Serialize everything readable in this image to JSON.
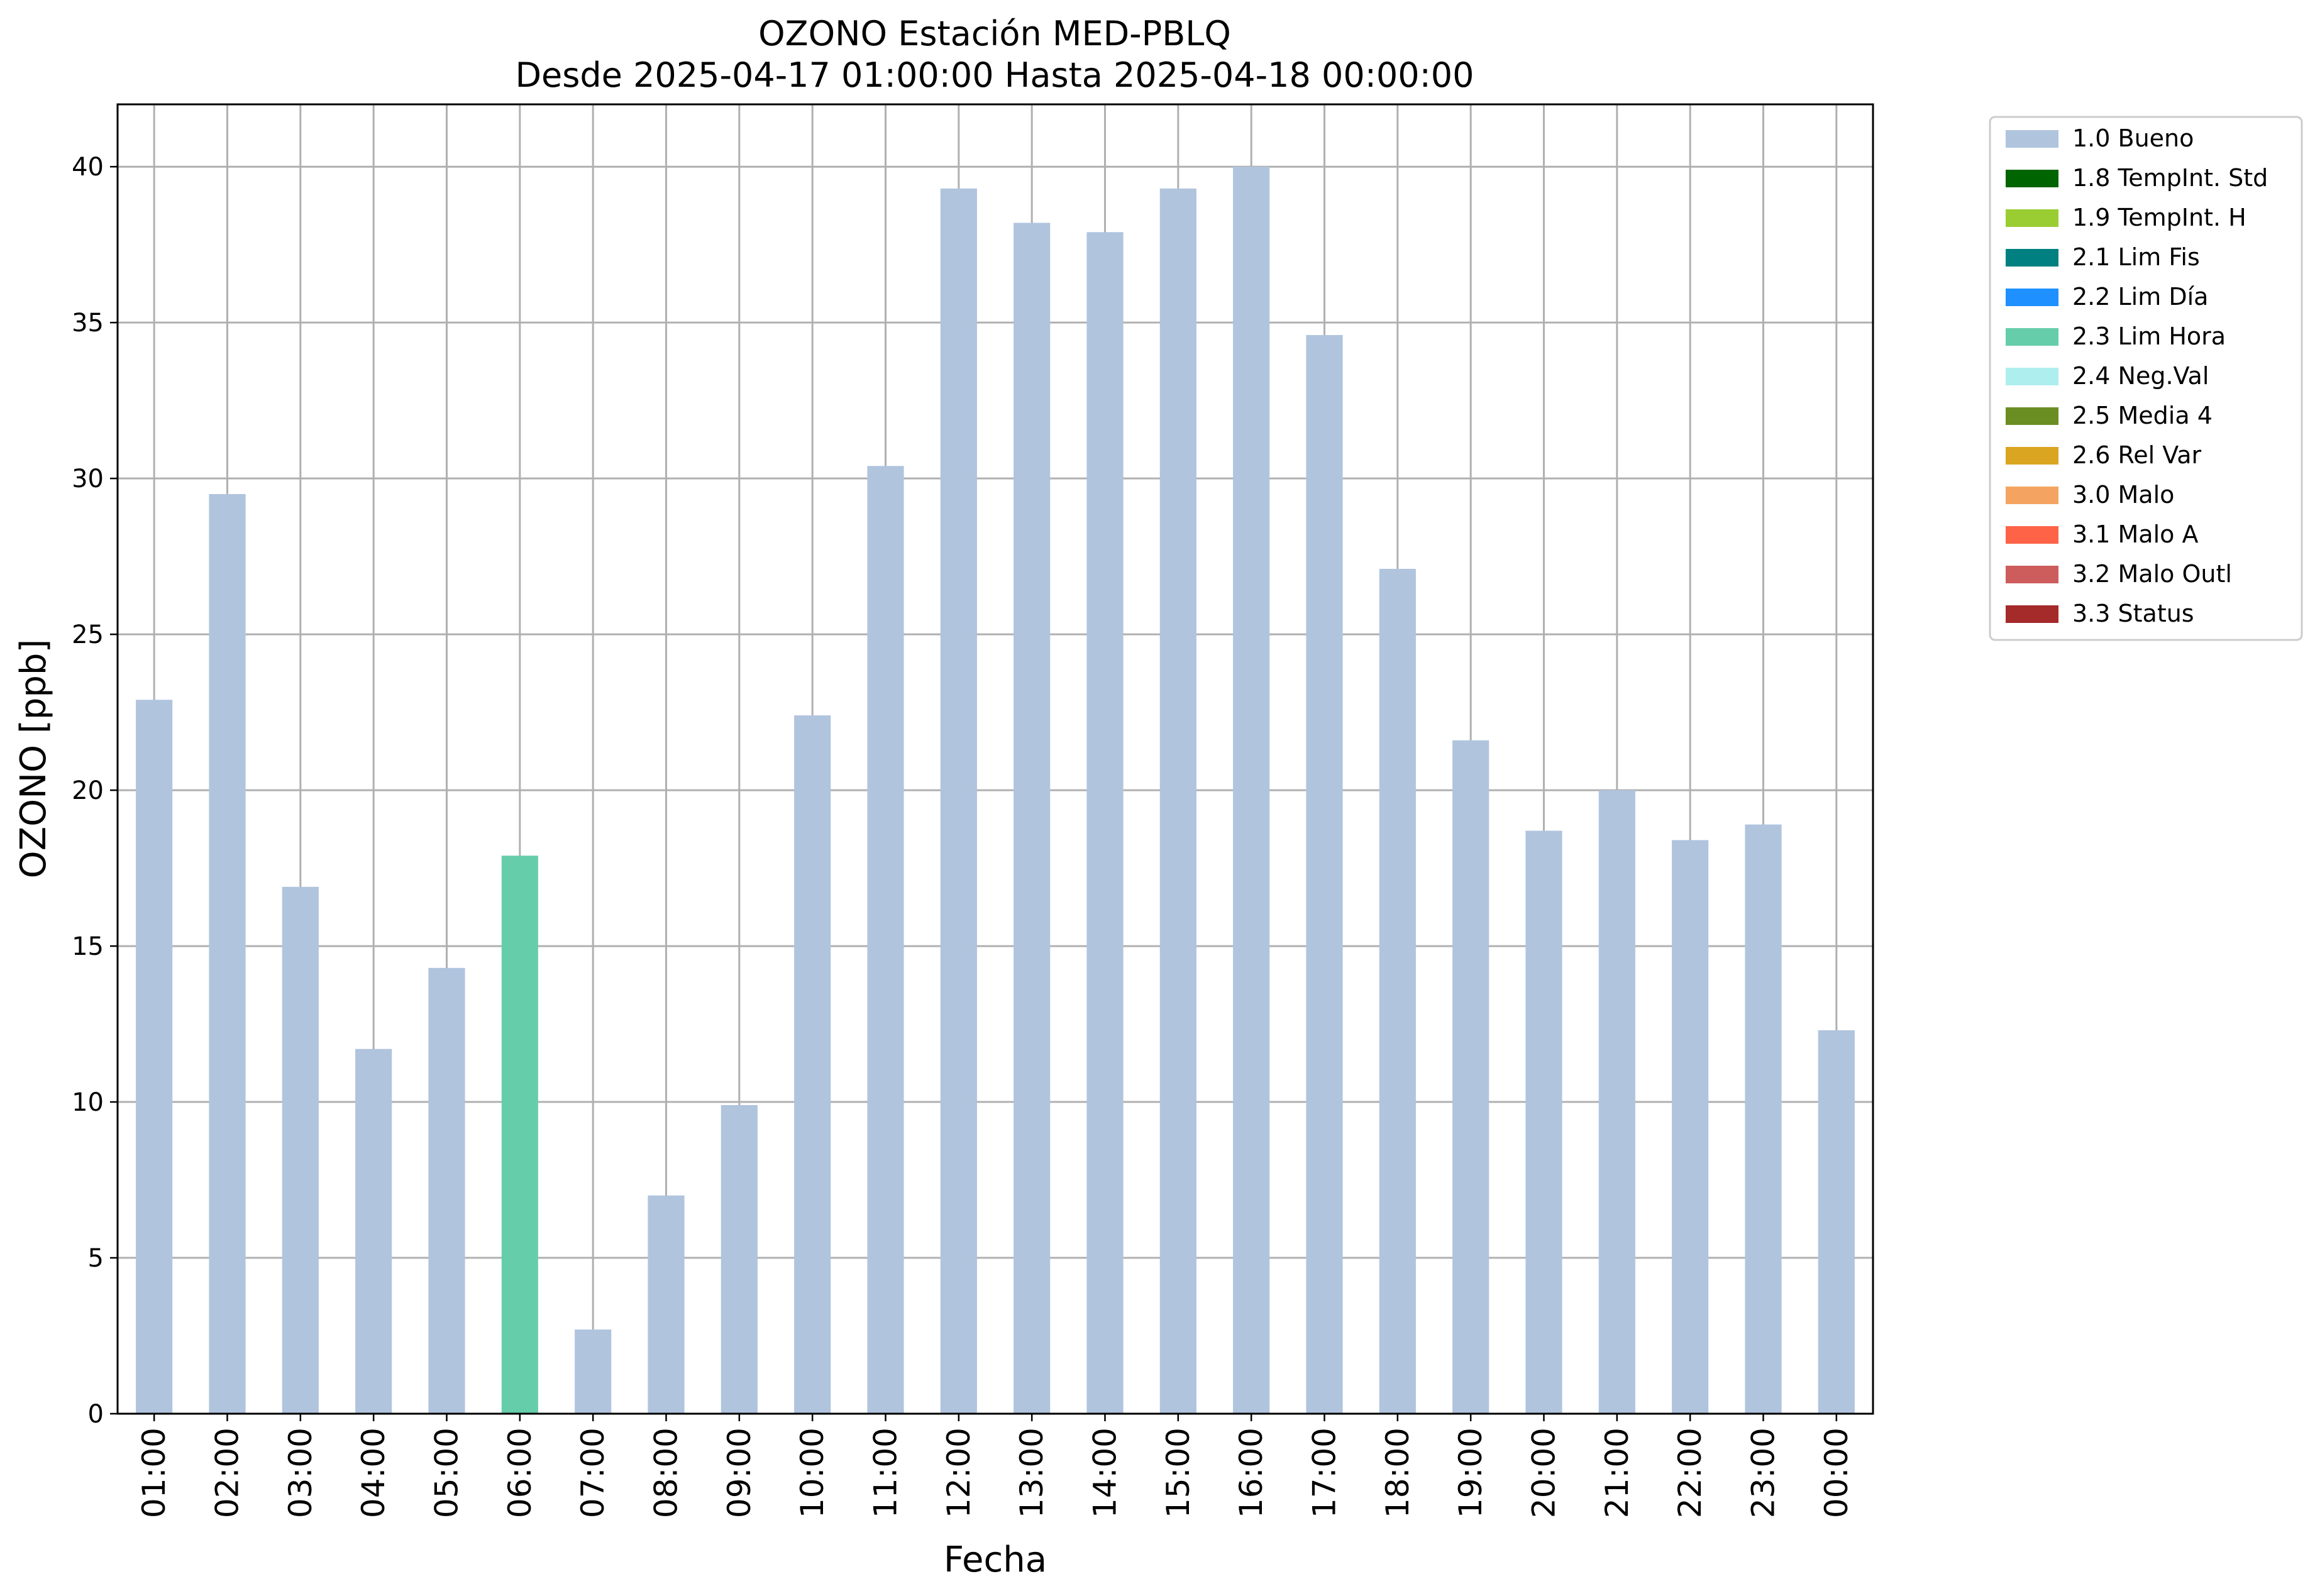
{
  "chart_data": {
    "type": "bar",
    "title": "OZONO Estación MED-PBLQ",
    "subtitle": "Desde 2025-04-17 01:00:00 Hasta 2025-04-18 00:00:00",
    "xlabel": "Fecha",
    "ylabel": "OZONO [ppb]",
    "ylim": [
      0,
      42
    ],
    "yticks": [
      0,
      5,
      10,
      15,
      20,
      25,
      30,
      35,
      40
    ],
    "grid": true,
    "legend_position": "outside-top-right",
    "categories": [
      "01:00",
      "02:00",
      "03:00",
      "04:00",
      "05:00",
      "06:00",
      "07:00",
      "08:00",
      "09:00",
      "10:00",
      "11:00",
      "12:00",
      "13:00",
      "14:00",
      "15:00",
      "16:00",
      "17:00",
      "18:00",
      "19:00",
      "20:00",
      "21:00",
      "22:00",
      "23:00",
      "00:00"
    ],
    "values": [
      22.9,
      29.5,
      16.9,
      11.7,
      14.3,
      17.9,
      2.7,
      7.0,
      9.9,
      22.4,
      30.4,
      39.3,
      38.2,
      37.9,
      39.3,
      40.0,
      34.6,
      27.1,
      21.6,
      18.7,
      20.0,
      18.4,
      18.9,
      12.3
    ],
    "flags": [
      "1.0 Bueno",
      "1.0 Bueno",
      "1.0 Bueno",
      "1.0 Bueno",
      "1.0 Bueno",
      "2.3 Lim Hora",
      "1.0 Bueno",
      "1.0 Bueno",
      "1.0 Bueno",
      "1.0 Bueno",
      "1.0 Bueno",
      "1.0 Bueno",
      "1.0 Bueno",
      "1.0 Bueno",
      "1.0 Bueno",
      "1.0 Bueno",
      "1.0 Bueno",
      "1.0 Bueno",
      "1.0 Bueno",
      "1.0 Bueno",
      "1.0 Bueno",
      "1.0 Bueno",
      "1.0 Bueno",
      "1.0 Bueno"
    ],
    "legend": [
      {
        "label": "1.0 Bueno",
        "color": "#b0c4de"
      },
      {
        "label": "1.8 TempInt. Std",
        "color": "#006400"
      },
      {
        "label": "1.9 TempInt. H",
        "color": "#9acd32"
      },
      {
        "label": "2.1 Lim Fis",
        "color": "#008080"
      },
      {
        "label": "2.2 Lim Día",
        "color": "#1e90ff"
      },
      {
        "label": "2.3 Lim Hora",
        "color": "#66cdaa"
      },
      {
        "label": "2.4 Neg.Val",
        "color": "#afeeee"
      },
      {
        "label": "2.5 Media 4",
        "color": "#6b8e23"
      },
      {
        "label": "2.6 Rel Var",
        "color": "#daa520"
      },
      {
        "label": "3.0 Malo",
        "color": "#f4a460"
      },
      {
        "label": "3.1 Malo A",
        "color": "#ff6347"
      },
      {
        "label": "3.2 Malo Outl",
        "color": "#cd5c5c"
      },
      {
        "label": "3.3 Status",
        "color": "#a52a2a"
      }
    ]
  }
}
